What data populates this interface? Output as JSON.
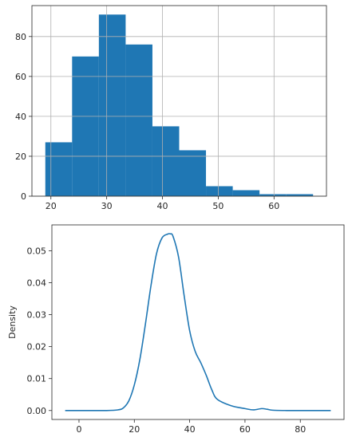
{
  "chart_data": [
    {
      "type": "bar",
      "subtype": "histogram",
      "bins": [
        {
          "x0": 19.0,
          "x1": 23.8,
          "count": 27
        },
        {
          "x0": 23.8,
          "x1": 28.6,
          "count": 70
        },
        {
          "x0": 28.6,
          "x1": 33.4,
          "count": 91
        },
        {
          "x0": 33.4,
          "x1": 38.2,
          "count": 76
        },
        {
          "x0": 38.2,
          "x1": 43.0,
          "count": 35
        },
        {
          "x0": 43.0,
          "x1": 47.8,
          "count": 23
        },
        {
          "x0": 47.8,
          "x1": 52.6,
          "count": 5
        },
        {
          "x0": 52.6,
          "x1": 57.4,
          "count": 3
        },
        {
          "x0": 57.4,
          "x1": 62.2,
          "count": 1
        },
        {
          "x0": 62.2,
          "x1": 67.0,
          "count": 1
        }
      ],
      "title": "",
      "xlabel": "",
      "ylabel": "",
      "xlim": [
        16.6,
        69.4
      ],
      "ylim": [
        0,
        95.5
      ],
      "xticks": [
        20,
        30,
        40,
        50,
        60
      ],
      "xtick_labels": [
        "20",
        "30",
        "40",
        "50",
        "60"
      ],
      "yticks": [
        0,
        20,
        40,
        60,
        80
      ],
      "ytick_labels": [
        "0",
        "20",
        "40",
        "60",
        "80"
      ],
      "grid": true,
      "bar_color": "#1f77b4",
      "grid_color": "#b0b0b0"
    },
    {
      "type": "line",
      "subtype": "density",
      "x": [
        -5,
        0,
        5,
        10,
        14,
        16,
        18,
        20,
        22,
        24,
        26,
        28,
        30,
        32,
        33,
        34,
        36,
        38,
        40,
        42,
        44,
        46,
        48,
        50,
        55,
        60,
        63,
        66,
        68,
        70,
        75,
        80,
        85,
        91
      ],
      "y": [
        0,
        0,
        0,
        0,
        0.0002,
        0.0008,
        0.003,
        0.008,
        0.016,
        0.027,
        0.039,
        0.049,
        0.054,
        0.0552,
        0.0553,
        0.0545,
        0.048,
        0.036,
        0.025,
        0.0185,
        0.015,
        0.011,
        0.0065,
        0.0035,
        0.0015,
        0.0006,
        0.0002,
        0.0006,
        0.0004,
        0.0001,
        0,
        0,
        0,
        0
      ],
      "title": "",
      "xlabel": "",
      "ylabel": "Density",
      "xlim": [
        -9.8,
        95.8
      ],
      "ylim": [
        -0.0028,
        0.0581
      ],
      "xticks": [
        0,
        20,
        40,
        60,
        80
      ],
      "xtick_labels": [
        "0",
        "20",
        "40",
        "60",
        "80"
      ],
      "yticks": [
        0.0,
        0.01,
        0.02,
        0.03,
        0.04,
        0.05
      ],
      "ytick_labels": [
        "0.00",
        "0.01",
        "0.02",
        "0.03",
        "0.04",
        "0.05"
      ],
      "grid": false,
      "line_color": "#1f77b4"
    }
  ]
}
